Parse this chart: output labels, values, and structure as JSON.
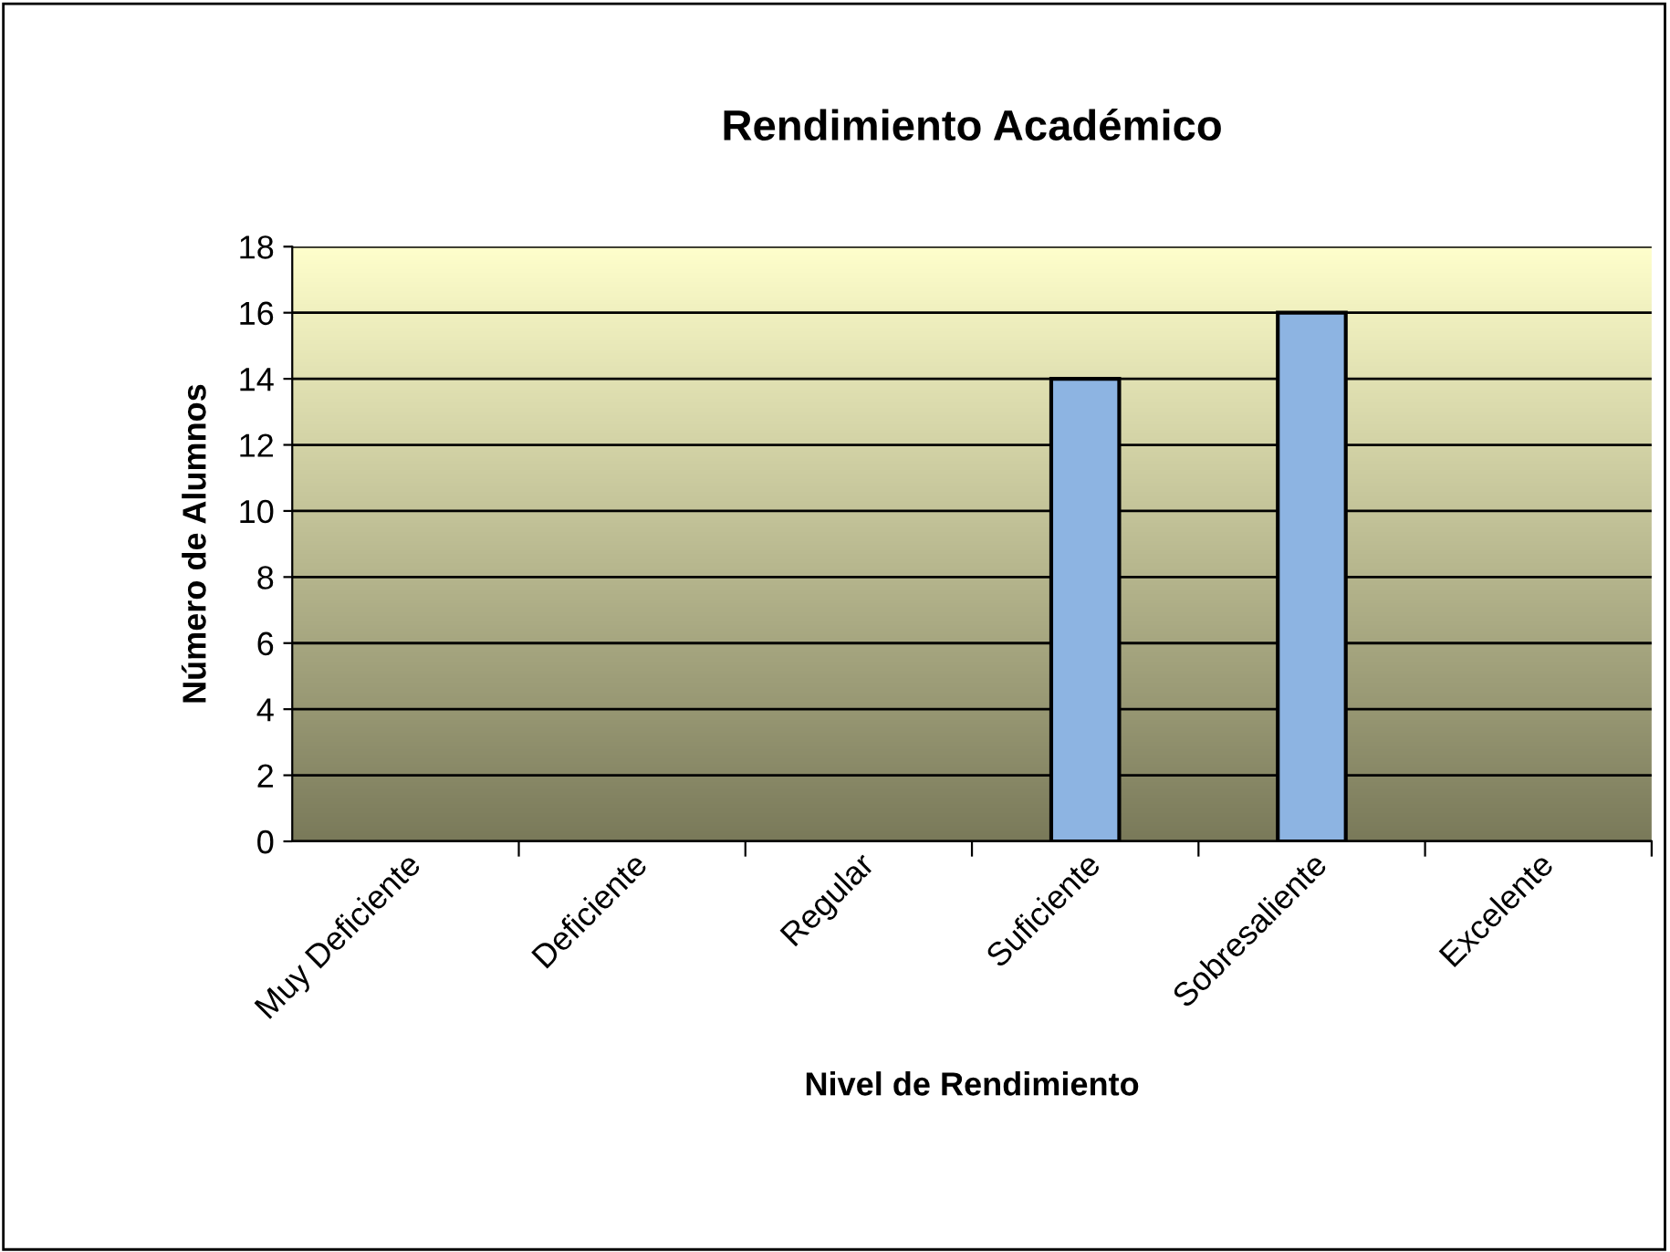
{
  "chart_data": {
    "type": "bar",
    "title": "Rendimiento Académico",
    "xlabel": "Nivel de Rendimiento",
    "ylabel": "Número de Alumnos",
    "categories": [
      "Muy Deficiente",
      "Deficiente",
      "Regular",
      "Suficiente",
      "Sobresaliente",
      "Excelente"
    ],
    "values": [
      0,
      0,
      0,
      14,
      16,
      0
    ],
    "color": "#8db4e2",
    "ylim": [
      0,
      18
    ],
    "yticks": [
      0,
      2,
      4,
      6,
      8,
      10,
      12,
      14,
      16,
      18
    ],
    "grid": "y",
    "legend": false
  }
}
